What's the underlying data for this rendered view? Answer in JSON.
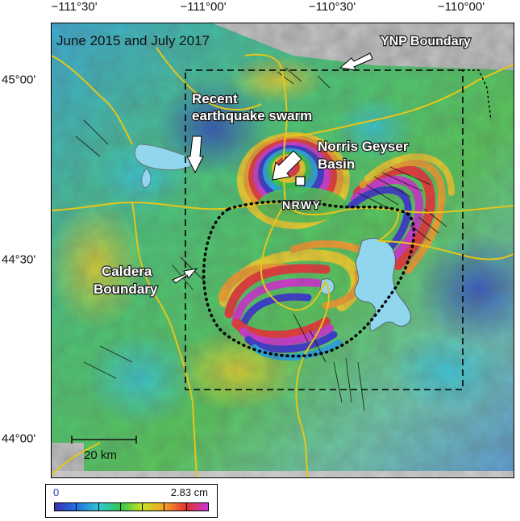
{
  "map": {
    "title": "June 2015 and July 2017",
    "lon_ticks": [
      "−111°30'",
      "−111°00'",
      "−110°30'",
      "−110°00'"
    ],
    "lat_ticks": [
      "45°00'",
      "44°30'",
      "44°00'"
    ],
    "annotations": {
      "ynp_boundary": "YNP Boundary",
      "swarm_line1": "Recent",
      "swarm_line2": "earthquake swarm",
      "norris_line1": "Norris Geyser",
      "norris_line2": "Basin",
      "station": "NRWY",
      "caldera_line1": "Caldera",
      "caldera_line2": "Boundary"
    },
    "scale_bar": "20 km",
    "colors": {
      "roads": "#e6c619",
      "lakes": "#8fd6ee",
      "boundary_lines": "#000000",
      "hillshade": "#b8b8b8"
    }
  },
  "colorbar": {
    "min_label": "0",
    "max_label": "2.83 cm",
    "colors": [
      "#3b2fb4",
      "#1f6fe0",
      "#2fc6d6",
      "#33c84a",
      "#c8e025",
      "#f2a22a",
      "#e33030",
      "#c83ad8"
    ]
  }
}
